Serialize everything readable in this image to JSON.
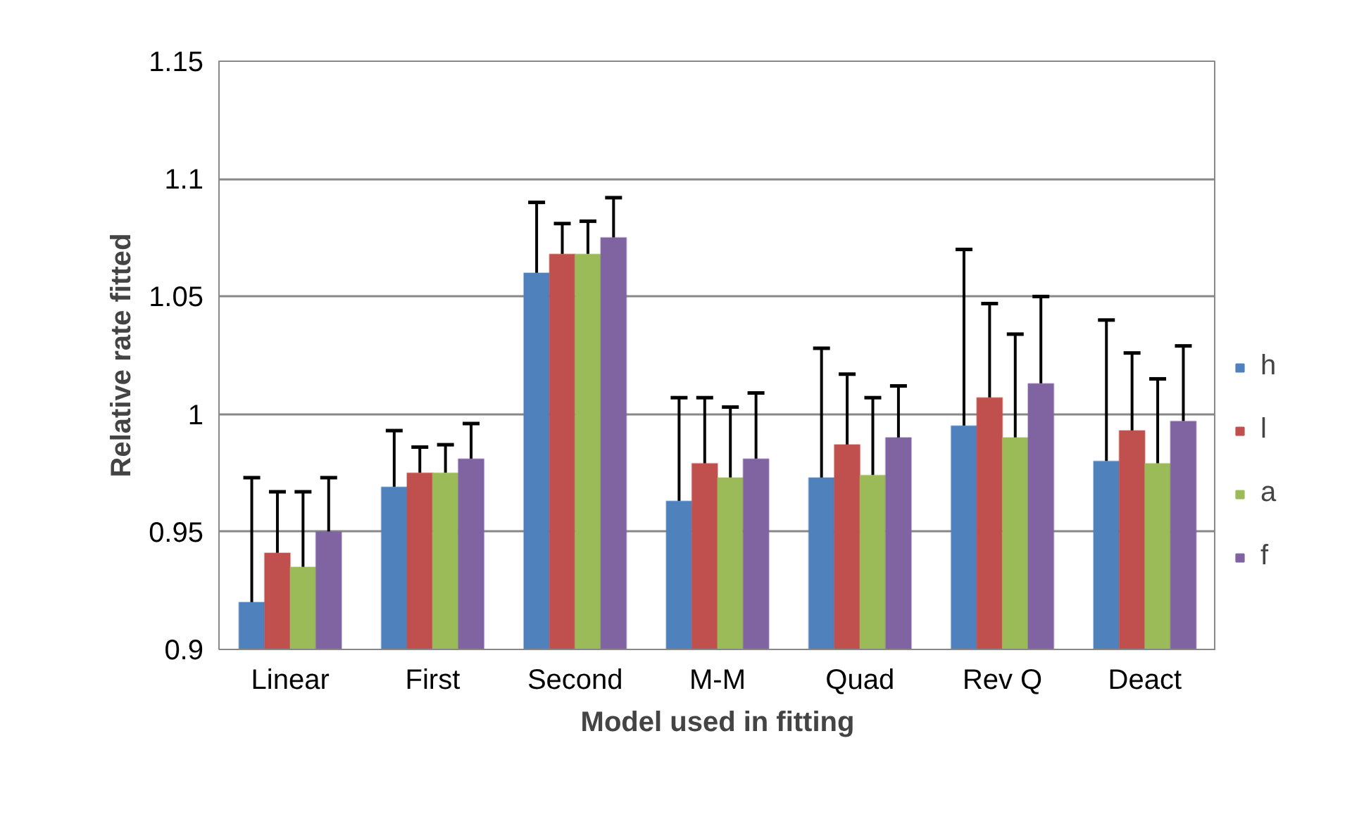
{
  "chart_data": {
    "type": "bar",
    "xlabel": "Model used in fitting",
    "ylabel": "Relative rate fitted",
    "categories": [
      "Linear",
      "First",
      "Second",
      "M-M",
      "Quad",
      "Rev Q",
      "Deact"
    ],
    "series": [
      {
        "name": "h",
        "color": "#4f81bd",
        "values": [
          0.92,
          0.969,
          1.06,
          0.963,
          0.973,
          0.995,
          0.98
        ],
        "errors": [
          [
            0.92,
            0.973
          ],
          [
            0.969,
            0.993
          ],
          [
            1.06,
            1.09
          ],
          [
            0.963,
            1.007
          ],
          [
            0.973,
            1.028
          ],
          [
            0.995,
            1.07
          ],
          [
            0.98,
            1.04
          ]
        ]
      },
      {
        "name": "l",
        "color": "#c0504d",
        "values": [
          0.941,
          0.975,
          1.068,
          0.979,
          0.987,
          1.007,
          0.993
        ],
        "errors": [
          [
            0.941,
            0.967
          ],
          [
            0.975,
            0.986
          ],
          [
            1.068,
            1.081
          ],
          [
            0.979,
            1.007
          ],
          [
            0.987,
            1.017
          ],
          [
            1.007,
            1.047
          ],
          [
            0.993,
            1.026
          ]
        ]
      },
      {
        "name": "a",
        "color": "#9bbb59",
        "values": [
          0.935,
          0.975,
          1.068,
          0.973,
          0.974,
          0.99,
          0.979
        ],
        "errors": [
          [
            0.935,
            0.967
          ],
          [
            0.975,
            0.987
          ],
          [
            1.068,
            1.082
          ],
          [
            0.973,
            1.003
          ],
          [
            0.974,
            1.007
          ],
          [
            0.99,
            1.034
          ],
          [
            0.979,
            1.015
          ]
        ]
      },
      {
        "name": "f",
        "color": "#8064a2",
        "values": [
          0.95,
          0.981,
          1.075,
          0.981,
          0.99,
          1.013,
          0.997
        ],
        "errors": [
          [
            0.95,
            0.973
          ],
          [
            0.981,
            0.996
          ],
          [
            1.075,
            1.092
          ],
          [
            0.981,
            1.009
          ],
          [
            0.99,
            1.012
          ],
          [
            1.013,
            1.05
          ],
          [
            0.997,
            1.029
          ]
        ]
      }
    ],
    "ylim": [
      0.9,
      1.15
    ],
    "yticks": [
      0.9,
      0.95,
      1,
      1.05,
      1.1,
      1.15
    ],
    "grid": "y",
    "legend": "right"
  }
}
